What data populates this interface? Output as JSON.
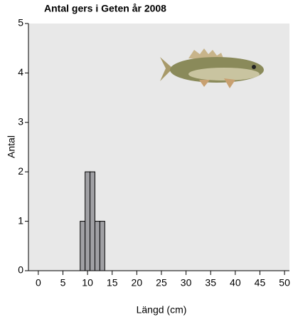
{
  "chart_data": {
    "type": "histogram",
    "title": "Antal gers i Geten år 2008",
    "x_label": "Längd (cm)",
    "y_label": "Antal",
    "bins": [
      8.5,
      9.5,
      10.5,
      11.5,
      12.5,
      13.5
    ],
    "values": [
      1,
      2,
      2,
      1,
      1
    ],
    "color": "#a0a0a4",
    "background": "#e8e8e8",
    "xlim": [
      -2,
      51
    ],
    "ylim": [
      0,
      5
    ],
    "xticks": [
      0,
      5,
      10,
      15,
      20,
      25,
      30,
      35,
      40,
      45,
      50
    ],
    "yticks": [
      0,
      1,
      2,
      3,
      4,
      5
    ]
  }
}
